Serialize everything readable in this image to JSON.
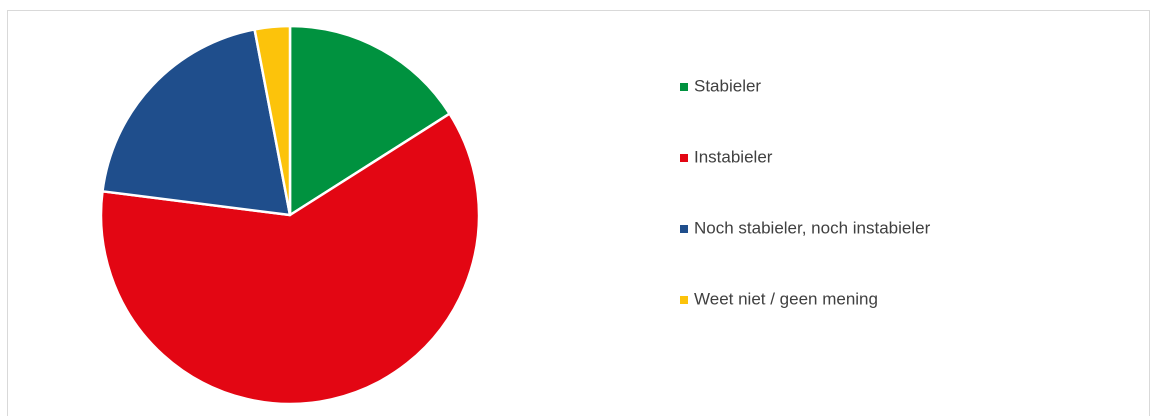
{
  "chart_data": {
    "type": "pie",
    "categories": [
      "Stabieler",
      "Instabieler",
      "Noch stabieler, noch instabieler",
      "Weet niet / geen mening"
    ],
    "values": [
      16,
      61,
      20,
      3
    ],
    "colors": [
      "#00923f",
      "#e30613",
      "#1f4e8c",
      "#fcc30b"
    ],
    "legend": "right"
  }
}
